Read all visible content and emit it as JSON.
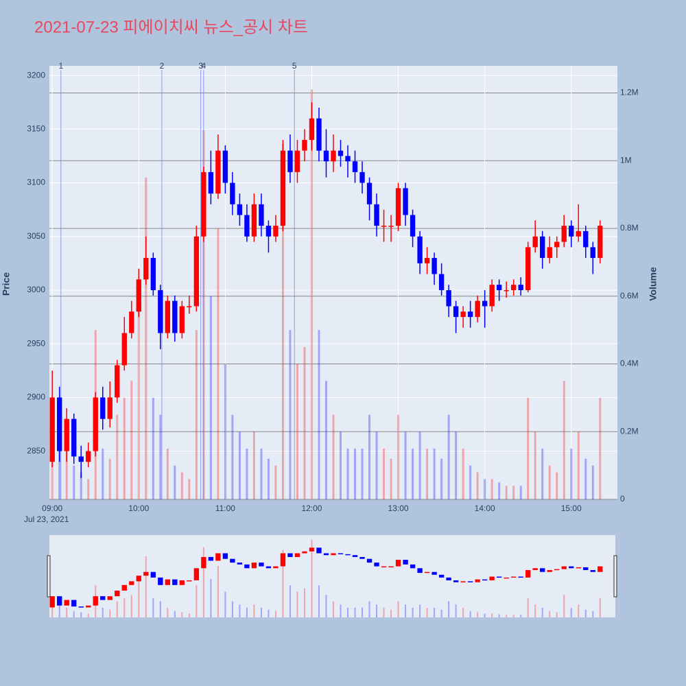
{
  "chart_data": {
    "type": "candlestick",
    "title": "2021-07-23 피에이치씨 뉴스_공시 차트",
    "y_label": "Price",
    "y2_label": "Volume",
    "x_date_label": "Jul 23, 2021",
    "up_color": "#ff0000",
    "down_color": "#0000ff",
    "x": [
      "09:00",
      "09:05",
      "09:10",
      "09:15",
      "09:20",
      "09:25",
      "09:30",
      "09:35",
      "09:40",
      "09:45",
      "09:50",
      "09:55",
      "10:00",
      "10:05",
      "10:10",
      "10:15",
      "10:20",
      "10:25",
      "10:30",
      "10:35",
      "10:40",
      "10:45",
      "10:50",
      "10:55",
      "11:00",
      "11:05",
      "11:10",
      "11:15",
      "11:20",
      "11:25",
      "11:30",
      "11:35",
      "11:40",
      "11:45",
      "11:50",
      "11:55",
      "12:00",
      "12:05",
      "12:10",
      "12:15",
      "12:20",
      "12:25",
      "12:30",
      "12:35",
      "12:40",
      "12:45",
      "12:50",
      "12:55",
      "13:00",
      "13:05",
      "13:10",
      "13:15",
      "13:20",
      "13:25",
      "13:30",
      "13:35",
      "13:40",
      "13:45",
      "13:50",
      "13:55",
      "14:00",
      "14:05",
      "14:10",
      "14:15",
      "14:20",
      "14:25",
      "14:30",
      "14:35",
      "14:40",
      "14:45",
      "14:50",
      "14:55",
      "15:00",
      "15:05",
      "15:10",
      "15:15",
      "15:20"
    ],
    "open": [
      2840,
      2900,
      2850,
      2880,
      2845,
      2840,
      2850,
      2900,
      2880,
      2900,
      2930,
      2960,
      2980,
      3010,
      3030,
      3000,
      2960,
      2990,
      2960,
      2985,
      2985,
      3050,
      3110,
      3090,
      3130,
      3100,
      3080,
      3070,
      3050,
      3080,
      3060,
      3050,
      3060,
      3130,
      3110,
      3130,
      3140,
      3160,
      3130,
      3120,
      3130,
      3125,
      3120,
      3110,
      3100,
      3080,
      3060,
      3060,
      3060,
      3095,
      3070,
      3050,
      3025,
      3030,
      3015,
      3000,
      2985,
      2975,
      2980,
      2975,
      2990,
      2985,
      3005,
      3000,
      3000,
      3005,
      3000,
      3040,
      3050,
      3030,
      3040,
      3045,
      3060,
      3050,
      3055,
      3040,
      3030
    ],
    "high": [
      2925,
      2910,
      2890,
      2885,
      2855,
      2858,
      2905,
      2910,
      2915,
      2935,
      2975,
      2990,
      3020,
      3050,
      3035,
      3005,
      2995,
      2995,
      2990,
      2995,
      3060,
      3115,
      3130,
      3145,
      3135,
      3110,
      3090,
      3080,
      3090,
      3090,
      3065,
      3070,
      3140,
      3145,
      3140,
      3150,
      3175,
      3170,
      3150,
      3145,
      3140,
      3135,
      3130,
      3120,
      3105,
      3090,
      3075,
      3070,
      3100,
      3100,
      3075,
      3055,
      3040,
      3035,
      3025,
      3005,
      2990,
      2985,
      2990,
      2995,
      3000,
      3010,
      3010,
      3008,
      3010,
      3012,
      3045,
      3065,
      3055,
      3050,
      3050,
      3070,
      3065,
      3080,
      3060,
      3045,
      3065
    ],
    "low": [
      2835,
      2840,
      2840,
      2838,
      2825,
      2835,
      2845,
      2870,
      2872,
      2895,
      2925,
      2955,
      2975,
      3005,
      2995,
      2945,
      2955,
      2952,
      2955,
      2978,
      2980,
      3045,
      3080,
      3085,
      3090,
      3070,
      3060,
      3045,
      3045,
      3050,
      3035,
      3045,
      3055,
      3100,
      3100,
      3120,
      3130,
      3120,
      3105,
      3110,
      3115,
      3105,
      3100,
      3090,
      3065,
      3050,
      3045,
      3045,
      3055,
      3060,
      3040,
      3015,
      3015,
      3005,
      2995,
      2975,
      2960,
      2965,
      2965,
      2970,
      2965,
      2980,
      2990,
      2993,
      2995,
      2995,
      2998,
      3035,
      3020,
      3025,
      3030,
      3040,
      3040,
      3045,
      3030,
      3015,
      3025
    ],
    "close": [
      2900,
      2850,
      2880,
      2845,
      2840,
      2850,
      2900,
      2880,
      2900,
      2930,
      2960,
      2980,
      3010,
      3030,
      3000,
      2960,
      2990,
      2960,
      2985,
      2985,
      3050,
      3110,
      3090,
      3130,
      3100,
      3080,
      3070,
      3050,
      3080,
      3060,
      3050,
      3060,
      3130,
      3110,
      3130,
      3140,
      3160,
      3130,
      3120,
      3130,
      3125,
      3120,
      3110,
      3100,
      3080,
      3060,
      3060,
      3060,
      3095,
      3070,
      3050,
      3025,
      3030,
      3015,
      3000,
      2985,
      2975,
      2980,
      2975,
      2990,
      2985,
      3005,
      3000,
      3000,
      3005,
      3000,
      3040,
      3050,
      3030,
      3040,
      3045,
      3060,
      3050,
      3055,
      3040,
      3030,
      3060
    ],
    "volume": [
      300000,
      250000,
      150000,
      100000,
      80000,
      60000,
      500000,
      150000,
      120000,
      250000,
      300000,
      350000,
      600000,
      950000,
      300000,
      250000,
      150000,
      100000,
      80000,
      60000,
      500000,
      1090000,
      600000,
      800000,
      400000,
      250000,
      200000,
      150000,
      200000,
      150000,
      120000,
      100000,
      1050000,
      500000,
      400000,
      450000,
      1210000,
      500000,
      350000,
      250000,
      200000,
      150000,
      150000,
      150000,
      250000,
      200000,
      150000,
      120000,
      250000,
      200000,
      150000,
      200000,
      150000,
      150000,
      120000,
      250000,
      200000,
      150000,
      100000,
      80000,
      60000,
      60000,
      50000,
      40000,
      40000,
      40000,
      300000,
      200000,
      150000,
      100000,
      80000,
      350000,
      150000,
      200000,
      120000,
      100000,
      300000
    ],
    "xlim": [
      "08:58",
      "15:32"
    ],
    "xticks": [
      "09:00",
      "10:00",
      "11:00",
      "12:00",
      "13:00",
      "14:00",
      "15:00"
    ],
    "ylim": [
      2805,
      3209
    ],
    "yticks": [
      2850,
      2900,
      2950,
      3000,
      3050,
      3100,
      3150,
      3200
    ],
    "y2lim": [
      0,
      1280000
    ],
    "y2ticks": [
      0,
      {
        "value": 200000,
        "label": "0.2M"
      },
      {
        "value": 400000,
        "label": "0.4M"
      },
      {
        "value": 600000,
        "label": "0.6M"
      },
      {
        "value": 800000,
        "label": "0.8M"
      },
      {
        "value": 1000000,
        "label": "1M"
      },
      {
        "value": 1200000,
        "label": "1.2M"
      }
    ],
    "annotations": [
      {
        "label": "1",
        "x": "09:06"
      },
      {
        "label": "2",
        "x": "10:16"
      },
      {
        "label": "3",
        "x": "10:43"
      },
      {
        "label": "4",
        "x": "10:45"
      },
      {
        "label": "5",
        "x": "11:48"
      }
    ],
    "grid": true,
    "rangeslider": true
  }
}
